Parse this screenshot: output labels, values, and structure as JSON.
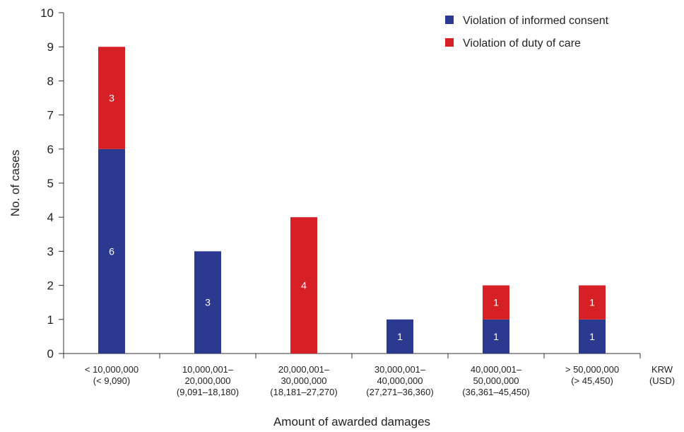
{
  "chart_data": {
    "type": "bar",
    "stacked": true,
    "categories": [
      [
        "< 10,000,000",
        "(< 9,090)"
      ],
      [
        "10,000,001–",
        "20,000,000",
        "(9,091–18,180)"
      ],
      [
        "20,000,001–",
        "30,000,000",
        "(18,181–27,270)"
      ],
      [
        "30,000,001–",
        "40,000,000",
        "(27,271–36,360)"
      ],
      [
        "40,000,001–",
        "50,000,000",
        "(36,361–45,450)"
      ],
      [
        "> 50,000,000",
        "(> 45,450)"
      ]
    ],
    "series": [
      {
        "name": "Violation of informed consent",
        "color": "#2B3990",
        "values": [
          6,
          3,
          0,
          1,
          1,
          1
        ]
      },
      {
        "name": "Violation of duty of care",
        "color": "#D71F26",
        "values": [
          3,
          0,
          4,
          0,
          1,
          1
        ]
      }
    ],
    "ylim": [
      0,
      10
    ],
    "yticks": [
      0,
      1,
      2,
      3,
      4,
      5,
      6,
      7,
      8,
      9,
      10
    ],
    "xlabel": "Amount of awarded damages",
    "ylabel": "No. of cases",
    "unit_label": [
      "KRW",
      "(USD)"
    ],
    "legend_position": "top-right",
    "grid": false
  }
}
